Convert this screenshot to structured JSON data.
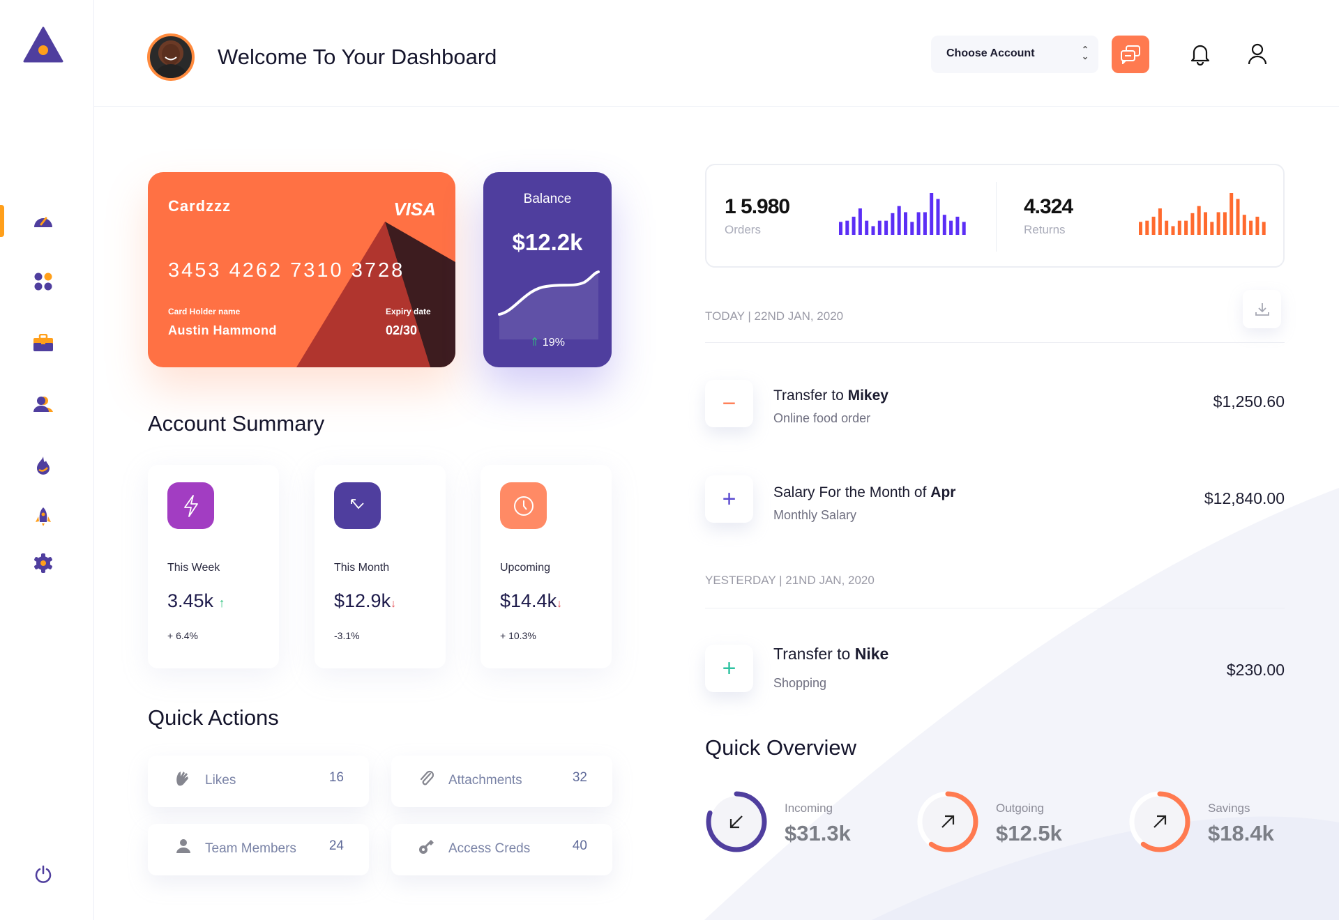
{
  "colors": {
    "primary": "#4F3E9E",
    "accent_orange": "#FF7A50",
    "sidebar_accent": "#FF9F1A",
    "up": "#2ec27e",
    "down": "#e5484d"
  },
  "sidebar": {
    "items": [
      {
        "name": "dashboard",
        "icon": "speedometer-icon",
        "active": true
      },
      {
        "name": "apps",
        "icon": "grid-icon"
      },
      {
        "name": "portfolio",
        "icon": "briefcase-icon"
      },
      {
        "name": "users",
        "icon": "users-icon"
      },
      {
        "name": "trending",
        "icon": "fire-icon"
      },
      {
        "name": "launch",
        "icon": "rocket-icon"
      },
      {
        "name": "settings",
        "icon": "gear-icon"
      }
    ],
    "logout_icon": "power-icon"
  },
  "header": {
    "title": "Welcome To Your Dashboard",
    "account_select": "Choose Account"
  },
  "card": {
    "brand": "Cardzzz",
    "network": "VISA",
    "number": "3453 4262 7310 3728",
    "holder_label": "Card Holder name",
    "holder": "Austin Hammond",
    "expiry_label": "Expiry date",
    "expiry": "02/30"
  },
  "balance": {
    "label": "Balance",
    "value": "$12.2k",
    "change": "19%"
  },
  "account_summary": {
    "title": "Account Summary",
    "cards": [
      {
        "label": "This Week",
        "value": "3.45k",
        "trend": "up",
        "change": "+ 6.4%",
        "icon": "lightning-icon",
        "color": "#A23DC2"
      },
      {
        "label": "This Month",
        "value": "$12.9k",
        "trend": "down",
        "change": "-3.1%",
        "icon": "arrows-icon",
        "color": "#4F3E9E"
      },
      {
        "label": "Upcoming",
        "value": "$14.4k",
        "trend": "down",
        "change": "+ 10.3%",
        "icon": "clock-icon",
        "color": "#FF8A65"
      }
    ]
  },
  "quick_actions": {
    "title": "Quick Actions",
    "items": [
      {
        "label": "Likes",
        "count": "16",
        "icon": "clap-icon"
      },
      {
        "label": "Attachments",
        "count": "32",
        "icon": "paperclip-icon"
      },
      {
        "label": "Team Members",
        "count": "24",
        "icon": "person-icon"
      },
      {
        "label": "Access Creds",
        "count": "40",
        "icon": "key-icon"
      }
    ]
  },
  "stats": {
    "orders": {
      "value": "1 5.980",
      "label": "Orders",
      "bars": [
        55,
        60,
        77,
        112,
        60,
        37,
        60,
        60,
        92,
        122,
        96,
        55,
        96,
        96,
        177,
        152,
        85,
        60,
        77,
        55
      ]
    },
    "returns": {
      "value": "4.324",
      "label": "Returns",
      "bars": [
        55,
        60,
        77,
        112,
        60,
        37,
        60,
        60,
        92,
        122,
        96,
        55,
        96,
        96,
        177,
        152,
        85,
        60,
        77,
        55
      ]
    }
  },
  "transactions": {
    "today_label": "TODAY | 22ND JAN, 2020",
    "yesterday_label": "YESTERDAY | 21ND JAN, 2020",
    "items": [
      {
        "title": "Transfer to ",
        "bold": "Mikey",
        "sub": "Online food order",
        "amount": "$1,250.60",
        "sign": "−"
      },
      {
        "title": "Salary For the Month of ",
        "bold": "Apr",
        "sub": "Monthly Salary",
        "amount": "$12,840.00",
        "sign": "+"
      },
      {
        "title": "Transfer to ",
        "bold": "Nike",
        "sub": "Shopping",
        "amount": "$230.00",
        "sign": "+"
      }
    ]
  },
  "quick_overview": {
    "title": "Quick Overview",
    "items": [
      {
        "label": "Incoming",
        "value": "$31.3k",
        "progress": 0.8,
        "color": "#4F3E9E",
        "icon": "arrow-down-left-icon"
      },
      {
        "label": "Outgoing",
        "value": "$12.5k",
        "progress": 0.6,
        "color": "#FF7A50",
        "icon": "arrow-up-right-icon"
      },
      {
        "label": "Savings",
        "value": "$18.4k",
        "progress": 0.6,
        "color": "#FF7A50",
        "icon": "arrow-up-right-icon"
      }
    ]
  }
}
